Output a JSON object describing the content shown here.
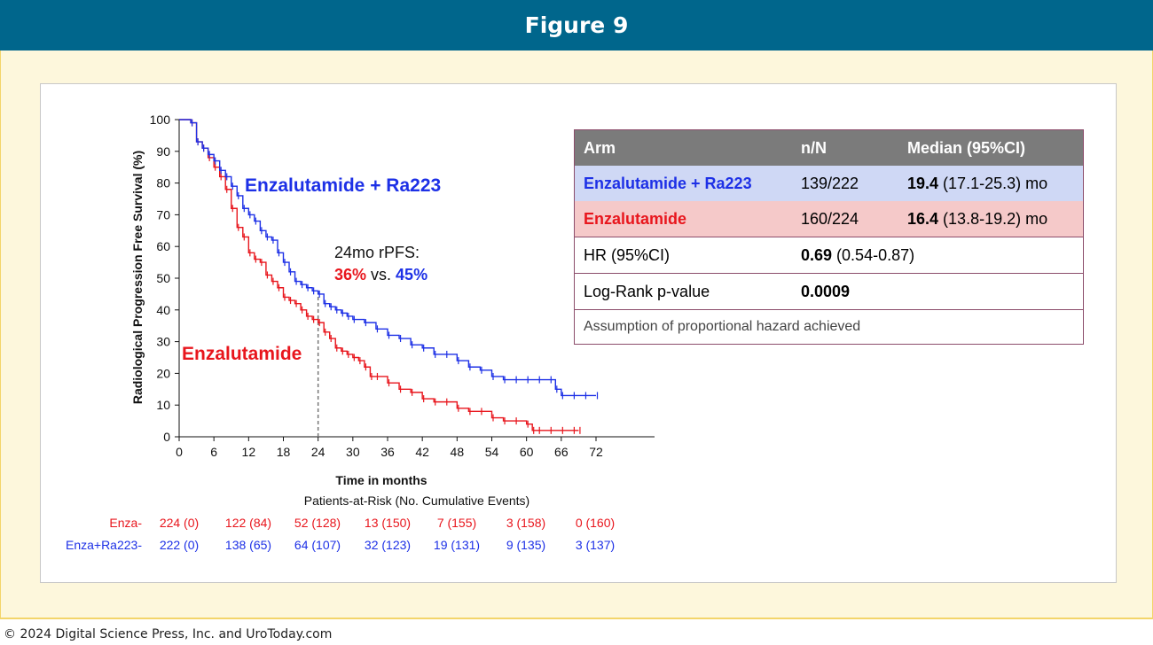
{
  "header": {
    "title": "Figure 9"
  },
  "copyright": "© 2024 Digital Science Press, Inc. and UroToday.com",
  "chart_data": {
    "type": "line",
    "subtype": "kaplan-meier",
    "xlabel": "Time in months",
    "ylabel": "Radiological Progression Free Survival (%)",
    "xlim": [
      0,
      72
    ],
    "ylim": [
      0,
      100
    ],
    "xticks": [
      0,
      6,
      12,
      18,
      24,
      30,
      36,
      42,
      48,
      54,
      60,
      66,
      72
    ],
    "yticks": [
      0,
      10,
      20,
      30,
      40,
      50,
      60,
      70,
      80,
      90,
      100
    ],
    "colors": {
      "enza": "#e8161d",
      "combo": "#1d30e6"
    },
    "series": [
      {
        "name": "Enzalutamide",
        "color": "#e8161d",
        "x": [
          0,
          2,
          3,
          4,
          5,
          6,
          7,
          8,
          9,
          10,
          11,
          12,
          13,
          14,
          15,
          16,
          17,
          18,
          19,
          20,
          21,
          22,
          23,
          24,
          25,
          26,
          27,
          28,
          29,
          30,
          31,
          32,
          33,
          34,
          36,
          38,
          40,
          42,
          44,
          46,
          48,
          50,
          52,
          54,
          56,
          58,
          60,
          61,
          62,
          64,
          66,
          68,
          69
        ],
        "y": [
          100,
          99,
          93,
          91,
          88,
          85,
          82,
          78,
          72,
          66,
          63,
          58,
          56,
          55,
          51,
          49,
          47,
          44,
          43,
          42,
          40,
          38,
          37,
          36,
          33,
          31,
          28,
          27,
          26,
          25,
          24,
          22,
          19,
          19,
          17,
          15,
          14,
          12,
          11,
          11,
          9,
          8,
          8,
          6,
          5,
          5,
          4,
          2,
          2,
          2,
          2,
          2,
          2
        ]
      },
      {
        "name": "Enzalutamide + Ra223",
        "color": "#1d30e6",
        "x": [
          0,
          2,
          3,
          4,
          5,
          6,
          7,
          8,
          9,
          10,
          11,
          12,
          13,
          14,
          15,
          16,
          17,
          18,
          19,
          20,
          21,
          22,
          23,
          24,
          25,
          26,
          27,
          28,
          29,
          30,
          32,
          34,
          36,
          38,
          40,
          42,
          44,
          46,
          48,
          50,
          52,
          54,
          56,
          58,
          60,
          62,
          64,
          65,
          66,
          68,
          70,
          72
        ],
        "y": [
          100,
          99,
          93,
          91,
          89,
          87,
          84,
          82,
          79,
          76,
          72,
          70,
          68,
          65,
          63,
          62,
          58,
          55,
          52,
          49,
          48,
          47,
          46,
          45,
          42,
          41,
          40,
          39,
          38,
          37,
          36,
          34,
          32,
          31,
          29,
          28,
          26,
          26,
          24,
          22,
          21,
          19,
          18,
          18,
          18,
          18,
          18,
          15,
          13,
          13,
          13,
          13
        ]
      }
    ],
    "annotations": {
      "combo_label": "Enzalutamide + Ra223",
      "enza_label": "Enzalutamide",
      "rpfs_title": "24mo rPFS:",
      "rpfs_enza": "36%",
      "rpfs_vs": "vs.",
      "rpfs_combo": "45%",
      "ref_line_x": 24
    },
    "at_risk": {
      "title": "Patients-at-Risk (No. Cumulative Events)",
      "rows": [
        {
          "label": "Enza-",
          "color": "#e8161d",
          "values": [
            "224 (0)",
            "122 (84)",
            "52 (128)",
            "13 (150)",
            "7 (155)",
            "3 (158)",
            "0 (160)"
          ]
        },
        {
          "label": "Enza+Ra223-",
          "color": "#1d30e6",
          "values": [
            "222 (0)",
            "138 (65)",
            "64 (107)",
            "32 (123)",
            "19 (131)",
            "9 (135)",
            "3 (137)"
          ]
        }
      ]
    }
  },
  "stats_table": {
    "headers": [
      "Arm",
      "n/N",
      "Median  (95%CI)"
    ],
    "rows": [
      {
        "arm": "Enzalutamide + Ra223",
        "nN": "139/222",
        "median_bold": "19.4",
        "median_rest": " (17.1-25.3) mo"
      },
      {
        "arm": "Enzalutamide",
        "nN": "160/224",
        "median_bold": "16.4",
        "median_rest": " (13.8-19.2) mo"
      }
    ],
    "hr_label": "HR (95%CI)",
    "hr_bold": "0.69",
    "hr_rest": " (0.54-0.87)",
    "p_label": "Log-Rank p-value",
    "p_value": "0.0009",
    "note": "Assumption of proportional hazard achieved"
  }
}
